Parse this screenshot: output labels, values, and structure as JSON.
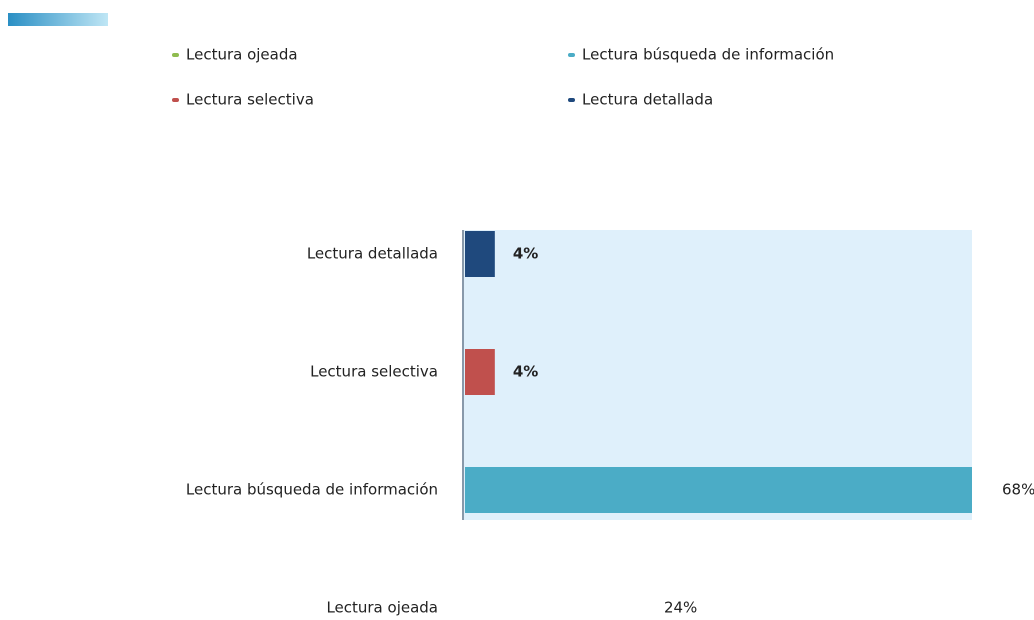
{
  "chart_data": {
    "type": "bar",
    "orientation": "horizontal",
    "categories": [
      "Lectura ojeada",
      "Lectura búsqueda de información",
      "Lectura selectiva",
      "Lectura detallada"
    ],
    "values": [
      24,
      68,
      4,
      4
    ],
    "value_labels": [
      "24%",
      "68%",
      "4%",
      "4%"
    ],
    "colors": [
      "#8fbc4f",
      "#4bacc6",
      "#c0504d",
      "#1f497d"
    ],
    "xlim": [
      0,
      68
    ]
  }
}
